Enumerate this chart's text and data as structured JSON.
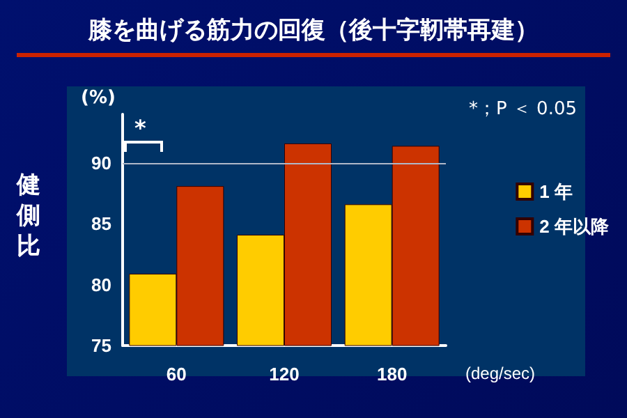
{
  "chart_data": {
    "type": "bar",
    "title": "膝を曲げる筋力の回復（後十字靭帯再建）",
    "ylabel": "健側比",
    "xlabel": "(deg/sec)",
    "annotations": [
      "(%)",
      "*；P ＜ 0.05",
      "*"
    ],
    "categories": [
      "60",
      "120",
      "180"
    ],
    "series": [
      {
        "name": "1 年",
        "color": "#ffcc00",
        "values": [
          80.9,
          84.1,
          86.6
        ]
      },
      {
        "name": "2 年以降",
        "color": "#cc3300",
        "values": [
          88.1,
          91.6,
          91.4
        ]
      }
    ],
    "ylim": [
      75,
      94
    ],
    "yticks": [
      75,
      80,
      85,
      90
    ],
    "ref_lines": [
      {
        "axis": "y",
        "value": 90,
        "color": "#b0b8c8"
      }
    ],
    "grid": false,
    "legend": "right"
  }
}
